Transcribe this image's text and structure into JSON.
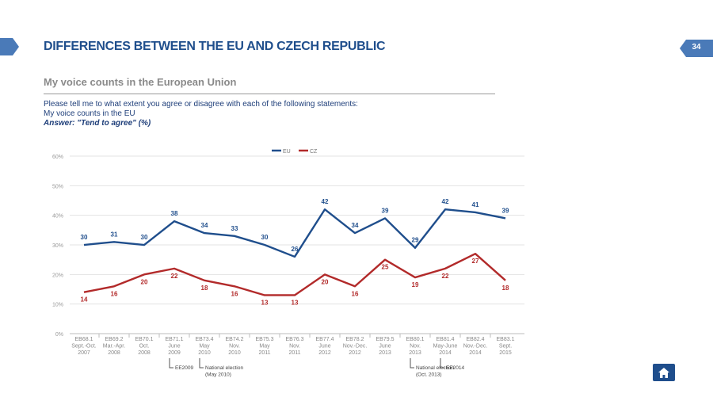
{
  "header": {
    "title": "DIFFERENCES BETWEEN THE EU AND CZECH REPUBLIC",
    "page_number": "34",
    "subtitle": "My voice counts in the European Union"
  },
  "question": {
    "line1": "Please tell me to what extent you agree or disagree with each of the following statements:",
    "line2": "My voice counts in the EU",
    "answer": "Answer: \"Tend to agree\" (%)"
  },
  "colors": {
    "eu": "#1f4e8c",
    "cz": "#b22a2a",
    "accent": "#4a7ab8"
  },
  "chart_data": {
    "type": "line",
    "categories": [
      [
        "EB68.1",
        "Sept.-Oct.",
        "2007"
      ],
      [
        "EB69.2",
        "Mar.-Apr.",
        "2008"
      ],
      [
        "EB70.1",
        "Oct.",
        "2008"
      ],
      [
        "EB71.1",
        "June",
        "2009"
      ],
      [
        "EB73.4",
        "May",
        "2010"
      ],
      [
        "EB74.2",
        "Nov.",
        "2010"
      ],
      [
        "EB75.3",
        "May",
        "2011"
      ],
      [
        "EB76.3",
        "Nov.",
        "2011"
      ],
      [
        "EB77.4",
        "June",
        "2012"
      ],
      [
        "EB78.2",
        "Nov.-Dec.",
        "2012"
      ],
      [
        "EB79.5",
        "June",
        "2013"
      ],
      [
        "EB80.1",
        "Nov.",
        "2013"
      ],
      [
        "EB81.4",
        "May-June",
        "2014"
      ],
      [
        "EB82.4",
        "Nov.-Dec.",
        "2014"
      ],
      [
        "EB83.1",
        "Sept.",
        "2015"
      ]
    ],
    "series": [
      {
        "name": "EU",
        "color": "#1f4e8c",
        "values": [
          30,
          31,
          30,
          38,
          34,
          33,
          30,
          26,
          42,
          34,
          39,
          29,
          42,
          41,
          39
        ]
      },
      {
        "name": "CZ",
        "color": "#b22a2a",
        "values": [
          14,
          16,
          20,
          22,
          18,
          16,
          13,
          13,
          20,
          16,
          25,
          19,
          22,
          27,
          18
        ]
      }
    ],
    "ylim": [
      0,
      60
    ],
    "yticks": [
      "0%",
      "10%",
      "20%",
      "30%",
      "40%",
      "50%",
      "60%"
    ],
    "grid": true,
    "legend": "top-center",
    "annotations": [
      {
        "category_index": 3,
        "lines": [
          "EE2009"
        ]
      },
      {
        "category_index": 4,
        "lines": [
          "National election",
          "(May 2010)"
        ]
      },
      {
        "category_index": 11,
        "lines": [
          "National election",
          "(Oct. 2013)"
        ]
      },
      {
        "category_index": 12,
        "lines": [
          "EE2014"
        ]
      }
    ]
  }
}
